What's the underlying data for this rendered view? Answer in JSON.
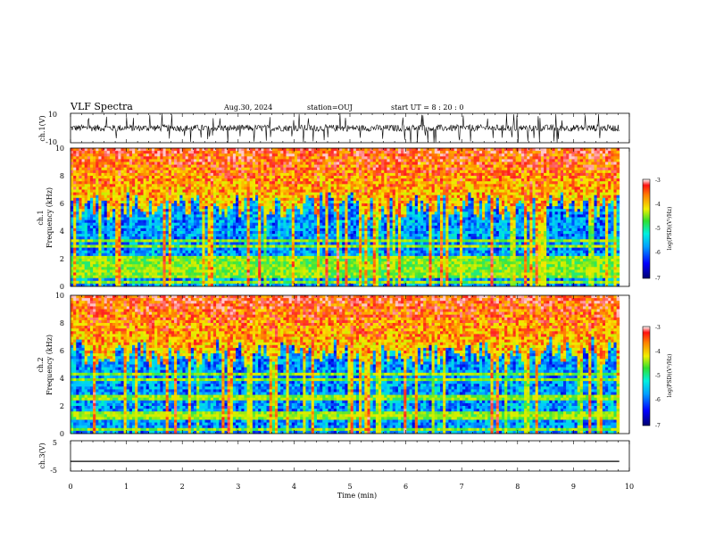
{
  "header": {
    "title": "VLF Spectra",
    "date": "Aug.30, 2024",
    "station": "station=OUJ",
    "start": "start  UT =   8 : 20 : 0"
  },
  "chart_data": [
    {
      "type": "line",
      "panel": "ch1-waveform",
      "ylabel": "ch.1(V)",
      "ylim": [
        -10,
        10
      ],
      "y_ticks": [
        "10",
        "-10"
      ],
      "xlim": [
        0,
        10
      ],
      "description_series": "noisy waveform between about -3 and +3 V with frequent spikes toward ±10 V, data ends near 9.8 min"
    },
    {
      "type": "heatmap",
      "panel": "ch1-spectrogram",
      "ylabel": "ch.1\nFrequency (kHz)",
      "ylim": [
        0,
        10
      ],
      "y_ticks": [
        "0",
        "2",
        "4",
        "6",
        "8",
        "10"
      ],
      "xlim": [
        0,
        9.82
      ],
      "colorbar": {
        "label": "log(PSD)(V²/Hz)",
        "range": [
          -7,
          -3
        ],
        "ticks": [
          "-3",
          "-4",
          "-5",
          "-6",
          "-7"
        ]
      }
    },
    {
      "type": "heatmap",
      "panel": "ch2-spectrogram",
      "ylabel": "ch.2\nFrequency (kHz)",
      "ylim": [
        0,
        10
      ],
      "y_ticks": [
        "0",
        "2",
        "4",
        "6",
        "8",
        "10"
      ],
      "xlim": [
        0,
        9.82
      ],
      "colorbar": {
        "label": "log(PSD)(V²/Hz)",
        "range": [
          -7,
          -3
        ],
        "ticks": [
          "-3",
          "-4",
          "-5",
          "-6",
          "-7"
        ]
      }
    },
    {
      "type": "line",
      "panel": "ch3-waveform",
      "ylabel": "ch.3(V)",
      "ylim": [
        -5,
        5
      ],
      "y_ticks": [
        "5",
        "-5"
      ],
      "xlim": [
        0,
        10
      ],
      "series": [
        {
          "x": [
            0,
            9.82
          ],
          "y": [
            -1.8,
            -1.8
          ]
        }
      ]
    }
  ],
  "x_axis": {
    "label": "Time (min)",
    "ticks": [
      "0",
      "1",
      "2",
      "3",
      "4",
      "5",
      "6",
      "7",
      "8",
      "9",
      "10"
    ]
  },
  "colors": {
    "low": "#00007a",
    "mid_low": "#0040ff",
    "cyan": "#00d8e8",
    "green": "#30e040",
    "yellow": "#f4f000",
    "orange": "#ff8c00",
    "red": "#ff2020",
    "line": "#000000"
  }
}
